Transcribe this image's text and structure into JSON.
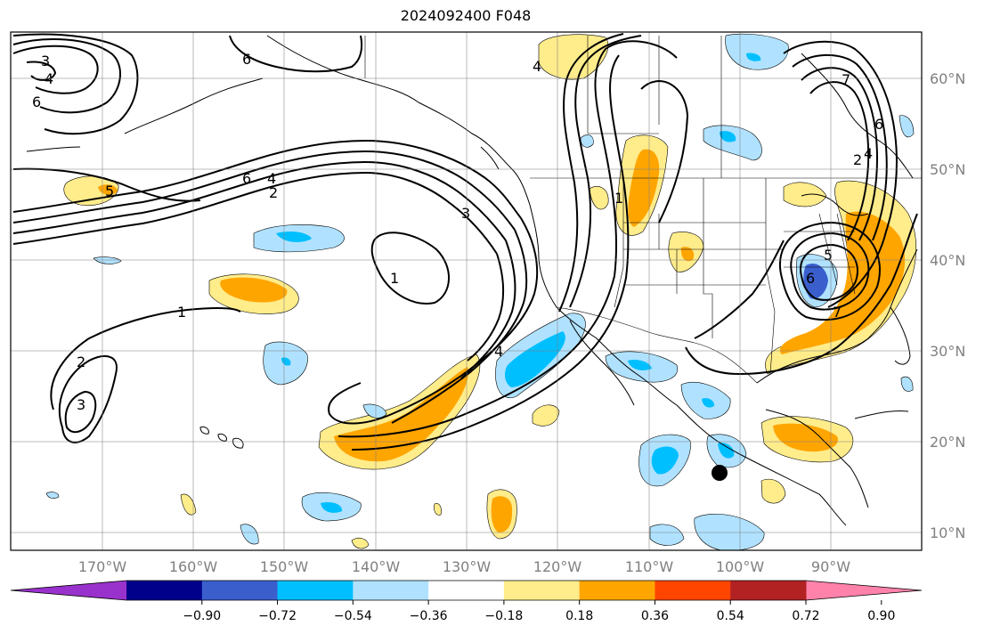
{
  "title": "2024092400 F048",
  "latitude_labels": [
    "10°N",
    "20°N",
    "30°N",
    "40°N",
    "50°N",
    "60°N"
  ],
  "longitude_labels": [
    "170°W",
    "160°W",
    "150°W",
    "140°W",
    "130°W",
    "120°W",
    "110°W",
    "100°W",
    "90°W"
  ],
  "colorbar": {
    "tick_labels": [
      "−0.90",
      "−0.72",
      "−0.54",
      "−0.36",
      "−0.18",
      "0.18",
      "0.36",
      "0.54",
      "0.72",
      "0.90"
    ],
    "colors": [
      "#9932cc",
      "#00008b",
      "#3a5fcd",
      "#00bfff",
      "#b0e2ff",
      "#ffffff",
      "#ffec8b",
      "#ffa500",
      "#ff4500",
      "#b22222",
      "#ff82ab"
    ]
  },
  "contour_labels": [
    "3",
    "4",
    "6",
    "6",
    "5",
    "6",
    "4",
    "2",
    "3",
    "1",
    "1",
    "2",
    "3",
    "4",
    "1",
    "5",
    "6",
    "7",
    "2",
    "6",
    "4",
    "7",
    "4"
  ],
  "marker": {
    "type": "black-dot",
    "lon": -102.0,
    "lat": 16.5
  }
}
